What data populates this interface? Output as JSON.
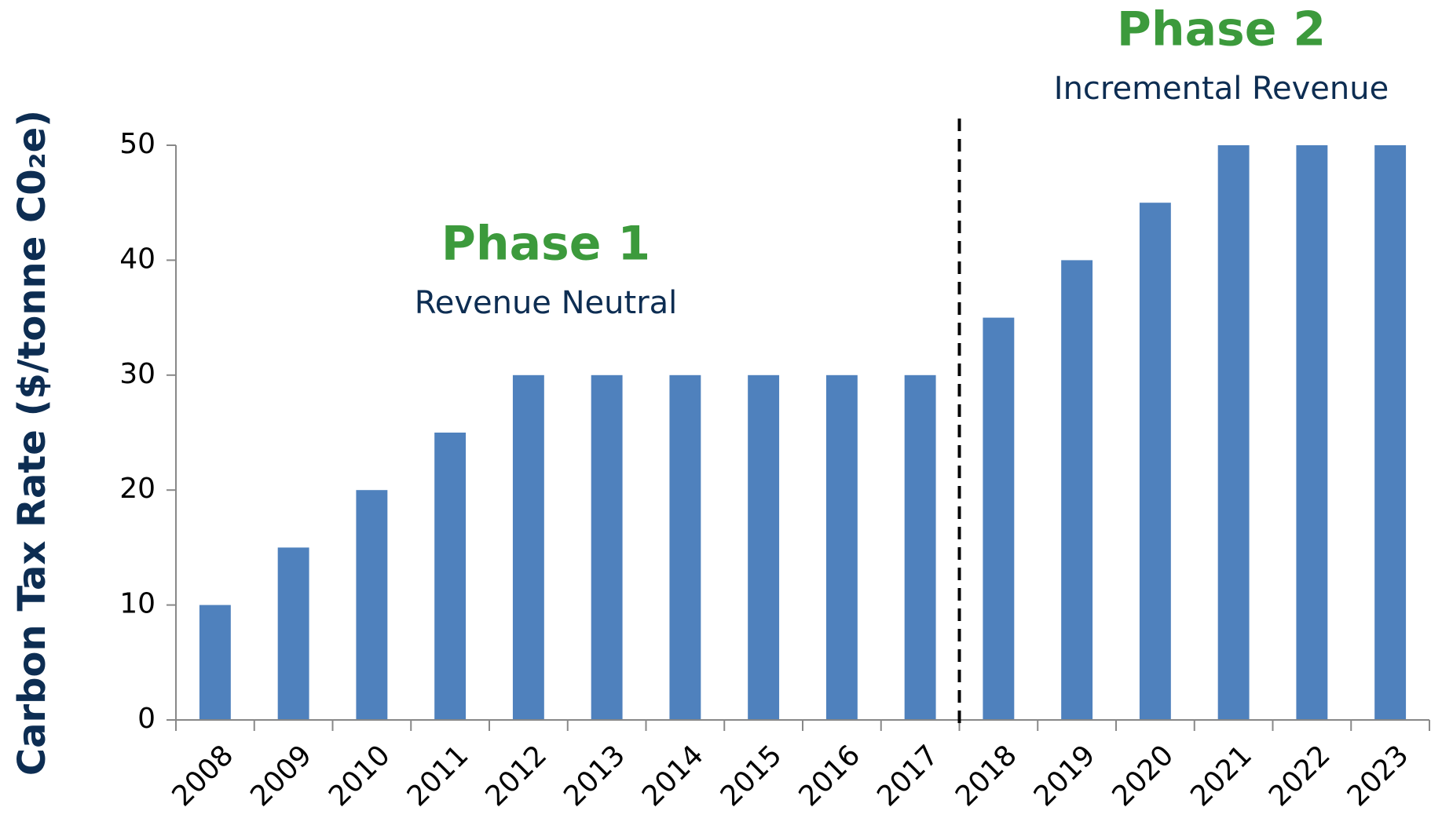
{
  "chart_data": {
    "type": "bar",
    "ylabel": "Carbon Tax Rate ($/tonne C0₂e)",
    "categories": [
      "2008",
      "2009",
      "2010",
      "2011",
      "2012",
      "2013",
      "2014",
      "2015",
      "2016",
      "2017",
      "2018",
      "2019",
      "2020",
      "2021",
      "2022",
      "2023"
    ],
    "values": [
      10,
      15,
      20,
      25,
      30,
      30,
      30,
      30,
      30,
      30,
      35,
      40,
      45,
      50,
      50,
      50
    ],
    "color": "#4f81bd",
    "ylim": [
      0,
      50
    ],
    "yticks": [
      0,
      10,
      20,
      30,
      40,
      50
    ],
    "grid": false,
    "annotations": [
      {
        "title": "Phase 1",
        "subtitle": "Revenue Neutral"
      },
      {
        "title": "Phase 2",
        "subtitle": "Incremental Revenue"
      }
    ]
  }
}
